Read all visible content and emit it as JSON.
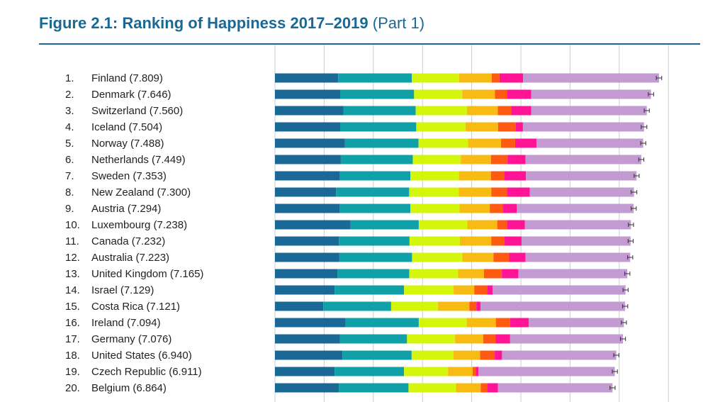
{
  "title": {
    "main": "Figure 2.1: Ranking of Happiness 2017–2019",
    "part": "(Part 1)"
  },
  "colors": {
    "title": "#1a6896",
    "gridline": "#cccccc",
    "error_bar": "#333333",
    "segments": [
      "#1a6896",
      "#0fa0a8",
      "#d4f50c",
      "#f7bb14",
      "#ff5a12",
      "#ff1496",
      "#c39ad2"
    ]
  },
  "chart_data": {
    "type": "bar",
    "orientation": "horizontal",
    "stacked": true,
    "grid": true,
    "categories": [
      {
        "rank": "1.",
        "label": "Finland (7.809)"
      },
      {
        "rank": "2.",
        "label": "Denmark (7.646)"
      },
      {
        "rank": "3.",
        "label": "Switzerland (7.560)"
      },
      {
        "rank": "4.",
        "label": "Iceland (7.504)"
      },
      {
        "rank": "5.",
        "label": "Norway (7.488)"
      },
      {
        "rank": "6.",
        "label": "Netherlands (7.449)"
      },
      {
        "rank": "7.",
        "label": "Sweden (7.353)"
      },
      {
        "rank": "8.",
        "label": "New Zealand (7.300)"
      },
      {
        "rank": "9.",
        "label": "Austria (7.294)"
      },
      {
        "rank": "10.",
        "label": "Luxembourg (7.238)"
      },
      {
        "rank": "11.",
        "label": "Canada (7.232)"
      },
      {
        "rank": "12.",
        "label": "Australia (7.223)"
      },
      {
        "rank": "13.",
        "label": "United Kingdom (7.165)"
      },
      {
        "rank": "14.",
        "label": "Israel (7.129)"
      },
      {
        "rank": "15.",
        "label": "Costa Rica (7.121)"
      },
      {
        "rank": "16.",
        "label": "Ireland (7.094)"
      },
      {
        "rank": "17.",
        "label": "Germany (7.076)"
      },
      {
        "rank": "18.",
        "label": "United States (6.940)"
      },
      {
        "rank": "19.",
        "label": "Czech Republic (6.911)"
      },
      {
        "rank": "20.",
        "label": "Belgium (6.864)"
      }
    ],
    "totals": [
      7.809,
      7.646,
      7.56,
      7.504,
      7.488,
      7.449,
      7.353,
      7.3,
      7.294,
      7.238,
      7.232,
      7.223,
      7.165,
      7.129,
      7.121,
      7.094,
      7.076,
      6.94,
      6.911,
      6.864
    ],
    "xlim": [
      0,
      8
    ],
    "segments": [
      [
        1.285,
        1.499,
        0.961,
        0.662,
        0.159,
        0.478,
        2.765
      ],
      [
        1.326,
        1.503,
        0.979,
        0.665,
        0.242,
        0.495,
        2.436
      ],
      [
        1.39,
        1.472,
        1.041,
        0.629,
        0.269,
        0.408,
        2.351
      ],
      [
        1.326,
        1.547,
        1.0,
        0.662,
        0.362,
        0.145,
        2.462
      ],
      [
        1.424,
        1.495,
        1.008,
        0.67,
        0.287,
        0.434,
        2.17
      ],
      [
        1.339,
        1.463,
        0.976,
        0.614,
        0.336,
        0.368,
        2.353
      ],
      [
        1.322,
        1.433,
        0.986,
        0.65,
        0.272,
        0.442,
        2.248
      ],
      [
        1.242,
        1.487,
        1.008,
        0.662,
        0.319,
        0.462,
        2.12
      ],
      [
        1.317,
        1.437,
        1.0,
        0.614,
        0.261,
        0.29,
        2.375
      ],
      [
        1.536,
        1.388,
        0.986,
        0.61,
        0.195,
        0.368,
        2.155
      ],
      [
        1.301,
        1.435,
        1.024,
        0.637,
        0.27,
        0.347,
        2.218
      ],
      [
        1.31,
        1.477,
        1.024,
        0.633,
        0.318,
        0.331,
        2.13
      ],
      [
        1.273,
        1.457,
        0.995,
        0.525,
        0.363,
        0.336,
        2.216
      ],
      [
        1.212,
        1.413,
        1.007,
        0.42,
        0.26,
        0.112,
        2.705
      ],
      [
        0.982,
        1.38,
        0.954,
        0.637,
        0.142,
        0.087,
        2.939
      ],
      [
        1.437,
        1.487,
        0.976,
        0.591,
        0.29,
        0.381,
        1.932
      ],
      [
        1.319,
        1.366,
        0.977,
        0.574,
        0.247,
        0.299,
        2.294
      ],
      [
        1.371,
        1.408,
        0.85,
        0.543,
        0.296,
        0.149,
        2.323
      ],
      [
        1.212,
        1.412,
        0.895,
        0.501,
        0.063,
        0.053,
        2.775
      ],
      [
        1.298,
        1.417,
        0.967,
        0.501,
        0.13,
        0.222,
        2.329
      ]
    ],
    "error": [
      0.055,
      0.054,
      0.052,
      0.058,
      0.052,
      0.052,
      0.052,
      0.058,
      0.052,
      0.052,
      0.052,
      0.052,
      0.052,
      0.052,
      0.052,
      0.052,
      0.052,
      0.052,
      0.052,
      0.052
    ]
  }
}
